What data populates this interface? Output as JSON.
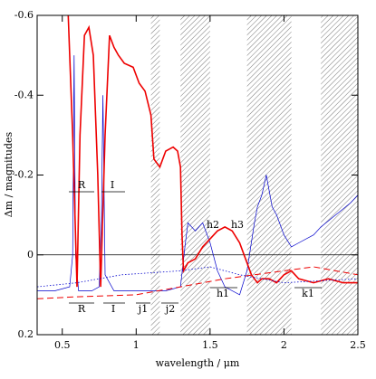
{
  "chart_data": {
    "type": "line",
    "x_label": "wavelength / μm",
    "y_label": "Δm / magnitudes",
    "xlim": [
      0.33,
      2.5
    ],
    "ylim": [
      0.2,
      -0.6
    ],
    "xticks": [
      0.5,
      1,
      1.5,
      2,
      2.5
    ],
    "yticks": [
      0.2,
      0,
      -0.2,
      -0.4,
      -0.6
    ],
    "zero_line": true,
    "bands": [
      [
        1.1,
        1.16
      ],
      [
        1.3,
        1.5
      ],
      [
        1.75,
        2.05
      ],
      [
        2.25,
        2.5
      ]
    ],
    "annotations": [
      "R",
      "I",
      "h2",
      "h3",
      "R",
      "I",
      "j1",
      "j2",
      "h1",
      "k1"
    ],
    "series": [
      {
        "color": "#0000cc",
        "style": "solid",
        "width": 0.7,
        "x": [
          0.33,
          0.45,
          0.55,
          0.57,
          0.58,
          0.59,
          0.61,
          0.7,
          0.75,
          0.765,
          0.775,
          0.79,
          0.85,
          1.0,
          1.2,
          1.3,
          1.33,
          1.35,
          1.4,
          1.45,
          1.5,
          1.55,
          1.6,
          1.7,
          1.75,
          1.8,
          1.82,
          1.85,
          1.88,
          1.92,
          1.95,
          2.0,
          2.05,
          2.1,
          2.2,
          2.25,
          2.35,
          2.45,
          2.5
        ],
        "values": [
          0.09,
          0.09,
          0.08,
          0.0,
          -0.5,
          0.0,
          0.09,
          0.09,
          0.08,
          -0.1,
          -0.4,
          0.05,
          0.09,
          0.09,
          0.09,
          0.08,
          -0.02,
          -0.08,
          -0.06,
          -0.08,
          -0.03,
          0.04,
          0.08,
          0.1,
          0.04,
          -0.08,
          -0.12,
          -0.15,
          -0.2,
          -0.12,
          -0.1,
          -0.05,
          -0.02,
          -0.03,
          -0.05,
          -0.07,
          -0.1,
          -0.13,
          -0.15
        ]
      },
      {
        "color": "#ee0000",
        "style": "solid",
        "width": 1.6,
        "x": [
          0.54,
          0.57,
          0.6,
          0.62,
          0.65,
          0.68,
          0.71,
          0.74,
          0.76,
          0.79,
          0.82,
          0.85,
          0.88,
          0.92,
          0.98,
          1.02,
          1.06,
          1.1,
          1.12,
          1.16,
          1.2,
          1.25,
          1.28,
          1.3,
          1.31,
          1.32,
          1.35,
          1.4,
          1.45,
          1.5,
          1.55,
          1.6,
          1.65,
          1.7,
          1.73,
          1.78,
          1.82,
          1.85,
          1.9,
          1.95,
          2.0,
          2.05,
          2.1,
          2.2,
          2.3,
          2.4,
          2.5
        ],
        "values": [
          -0.6,
          -0.3,
          0.08,
          -0.3,
          -0.55,
          -0.57,
          -0.5,
          -0.2,
          0.08,
          -0.3,
          -0.55,
          -0.52,
          -0.5,
          -0.48,
          -0.47,
          -0.43,
          -0.41,
          -0.35,
          -0.24,
          -0.22,
          -0.26,
          -0.27,
          -0.26,
          -0.22,
          -0.05,
          0.04,
          0.02,
          0.01,
          -0.02,
          -0.04,
          -0.06,
          -0.07,
          -0.06,
          -0.03,
          0.0,
          0.05,
          0.07,
          0.06,
          0.06,
          0.07,
          0.05,
          0.04,
          0.06,
          0.07,
          0.06,
          0.07,
          0.07
        ]
      },
      {
        "color": "#ee0000",
        "style": "dashed",
        "width": 1,
        "x": [
          0.33,
          0.6,
          1.0,
          1.3,
          1.6,
          1.8,
          2.0,
          2.2,
          2.5
        ],
        "values": [
          0.11,
          0.105,
          0.1,
          0.08,
          0.06,
          0.05,
          0.04,
          0.03,
          0.05
        ]
      },
      {
        "color": "#0000cc",
        "style": "dotted",
        "width": 0.8,
        "x": [
          0.33,
          0.6,
          0.9,
          1.3,
          1.5,
          1.7,
          2.0,
          2.5
        ],
        "values": [
          0.08,
          0.07,
          0.05,
          0.04,
          0.03,
          0.05,
          0.07,
          0.06
        ]
      }
    ]
  }
}
